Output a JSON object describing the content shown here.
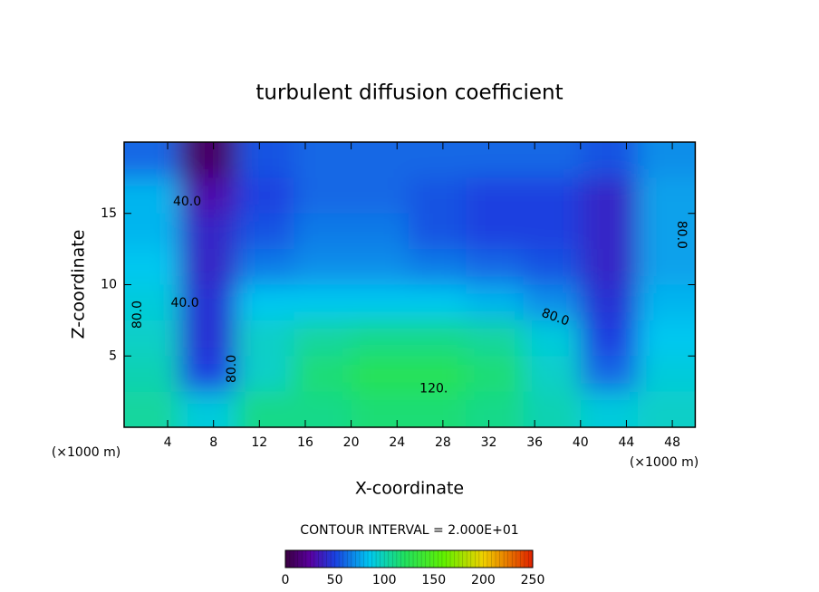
{
  "chart_data": {
    "type": "heatmap",
    "title": "turbulent diffusion coefficient",
    "x_label": "X-coordinate",
    "y_label": "Z-coordinate",
    "x_unit_label": "(×1000 m)",
    "y_unit_label": "(×1000 m)",
    "note": "CONTOUR INTERVAL = 2.000E+01",
    "xlim": [
      0,
      50
    ],
    "ylim": [
      0,
      20
    ],
    "xticks": [
      4,
      8,
      12,
      16,
      20,
      24,
      28,
      32,
      36,
      40,
      44,
      48
    ],
    "yticks": [
      5,
      10,
      15
    ],
    "x": [
      2.5,
      7.5,
      12.5,
      17.5,
      22.5,
      27.5,
      32.5,
      37.5,
      42.5,
      47.5
    ],
    "y": [
      18.75,
      16.25,
      13.75,
      11.25,
      8.75,
      6.25,
      3.75,
      1.25
    ],
    "z": [
      [
        60,
        10,
        55,
        60,
        60,
        60,
        60,
        60,
        55,
        70
      ],
      [
        80,
        30,
        50,
        60,
        60,
        55,
        50,
        50,
        40,
        75
      ],
      [
        80,
        40,
        55,
        65,
        65,
        55,
        50,
        50,
        40,
        75
      ],
      [
        85,
        40,
        65,
        70,
        70,
        65,
        60,
        55,
        40,
        75
      ],
      [
        90,
        45,
        85,
        85,
        85,
        85,
        80,
        70,
        45,
        80
      ],
      [
        95,
        45,
        95,
        105,
        110,
        110,
        105,
        90,
        50,
        85
      ],
      [
        100,
        50,
        95,
        115,
        125,
        125,
        115,
        95,
        60,
        90
      ],
      [
        105,
        90,
        110,
        110,
        115,
        115,
        110,
        100,
        90,
        95
      ]
    ],
    "clim": [
      0,
      250
    ],
    "cticks": [
      0,
      50,
      100,
      150,
      200,
      250
    ],
    "colorscale": [
      [
        0,
        "#3a0040"
      ],
      [
        25,
        "#5a00a0"
      ],
      [
        50,
        "#1a40e0"
      ],
      [
        85,
        "#00c8f0"
      ],
      [
        120,
        "#20e060"
      ],
      [
        160,
        "#60f000"
      ],
      [
        200,
        "#f0d000"
      ],
      [
        250,
        "#e02000"
      ]
    ],
    "contour_labels": [
      {
        "label": "40.0",
        "x": 5.7,
        "y": 15.8
      },
      {
        "label": "40.0",
        "x": 5.5,
        "y": 8.7
      },
      {
        "label": "80.0",
        "x": 1.4,
        "y": 7.9
      },
      {
        "label": "80.0",
        "x": 9.6,
        "y": 4.1
      },
      {
        "label": "80.0",
        "x": 37.8,
        "y": 7.7
      },
      {
        "label": "80.0",
        "x": 48.8,
        "y": 13.5
      },
      {
        "label": "120.",
        "x": 27.2,
        "y": 2.7
      }
    ]
  }
}
